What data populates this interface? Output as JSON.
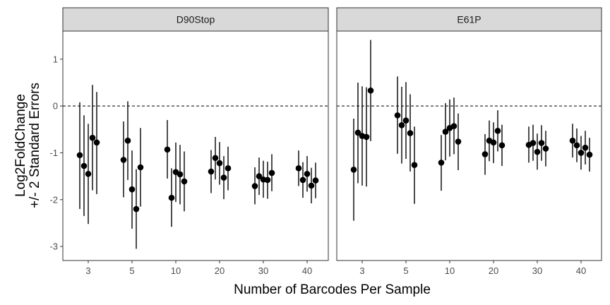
{
  "chart_data": {
    "type": "scatter",
    "subtype": "faceted point-range",
    "xlabel": "Number of Barcodes Per Sample",
    "ylabel_lines": [
      "Log2FoldChange",
      "+/- 2 Standard Errors"
    ],
    "ylim": [
      -3.3,
      1.6
    ],
    "y_ticks": [
      1,
      0,
      -1,
      -2,
      -3
    ],
    "y_tick_labels": [
      "1",
      "0",
      "-1",
      "-2",
      "-3"
    ],
    "x_categories": [
      "3",
      "5",
      "10",
      "20",
      "30",
      "40"
    ],
    "reference_line": {
      "y": 0,
      "style": "dashed"
    },
    "grid": false,
    "point_color": "#000000",
    "strip_color": "#d9d9d9",
    "panels": [
      {
        "strip": "D90Stop",
        "groups": [
          {
            "category": "3",
            "points": [
              {
                "y": -1.05,
                "lo": -2.2,
                "hi": 0.08
              },
              {
                "y": -1.28,
                "lo": -2.35,
                "hi": -0.2
              },
              {
                "y": -1.45,
                "lo": -2.52,
                "hi": -0.38
              },
              {
                "y": -0.68,
                "lo": -1.8,
                "hi": 0.45
              },
              {
                "y": -0.78,
                "lo": -1.88,
                "hi": 0.3
              }
            ]
          },
          {
            "category": "5",
            "points": [
              {
                "y": -1.15,
                "lo": -1.95,
                "hi": -0.33
              },
              {
                "y": -0.74,
                "lo": -1.58,
                "hi": 0.1
              },
              {
                "y": -1.78,
                "lo": -2.62,
                "hi": -0.95
              },
              {
                "y": -2.2,
                "lo": -3.05,
                "hi": -1.35
              },
              {
                "y": -1.31,
                "lo": -2.15,
                "hi": -0.47
              }
            ]
          },
          {
            "category": "10",
            "points": [
              {
                "y": -0.93,
                "lo": -1.55,
                "hi": -0.3
              },
              {
                "y": -1.96,
                "lo": -2.58,
                "hi": -1.33
              },
              {
                "y": -1.41,
                "lo": -2.05,
                "hi": -0.78
              },
              {
                "y": -1.46,
                "lo": -2.1,
                "hi": -0.83
              },
              {
                "y": -1.61,
                "lo": -2.25,
                "hi": -0.97
              }
            ]
          },
          {
            "category": "20",
            "points": [
              {
                "y": -1.4,
                "lo": -1.86,
                "hi": -0.94
              },
              {
                "y": -1.11,
                "lo": -1.57,
                "hi": -0.66
              },
              {
                "y": -1.22,
                "lo": -1.68,
                "hi": -0.77
              },
              {
                "y": -1.53,
                "lo": -1.99,
                "hi": -1.07
              },
              {
                "y": -1.33,
                "lo": -1.8,
                "hi": -0.87
              }
            ]
          },
          {
            "category": "30",
            "points": [
              {
                "y": -1.71,
                "lo": -2.1,
                "hi": -1.31
              },
              {
                "y": -1.5,
                "lo": -1.9,
                "hi": -1.1
              },
              {
                "y": -1.57,
                "lo": -1.96,
                "hi": -1.17
              },
              {
                "y": -1.58,
                "lo": -1.98,
                "hi": -1.19
              },
              {
                "y": -1.43,
                "lo": -1.82,
                "hi": -1.03
              }
            ]
          },
          {
            "category": "40",
            "points": [
              {
                "y": -1.33,
                "lo": -1.71,
                "hi": -0.95
              },
              {
                "y": -1.58,
                "lo": -1.96,
                "hi": -1.2
              },
              {
                "y": -1.45,
                "lo": -1.83,
                "hi": -1.07
              },
              {
                "y": -1.7,
                "lo": -2.08,
                "hi": -1.32
              },
              {
                "y": -1.59,
                "lo": -1.97,
                "hi": -1.21
              }
            ]
          }
        ]
      },
      {
        "strip": "E61P",
        "groups": [
          {
            "category": "3",
            "points": [
              {
                "y": -1.36,
                "lo": -2.45,
                "hi": -0.27
              },
              {
                "y": -0.57,
                "lo": -1.65,
                "hi": 0.5
              },
              {
                "y": -0.64,
                "lo": -1.7,
                "hi": 0.42
              },
              {
                "y": -0.66,
                "lo": -1.72,
                "hi": 0.4
              },
              {
                "y": 0.33,
                "lo": -0.75,
                "hi": 1.41
              }
            ]
          },
          {
            "category": "5",
            "points": [
              {
                "y": -0.2,
                "lo": -1.02,
                "hi": 0.63
              },
              {
                "y": -0.41,
                "lo": -1.23,
                "hi": 0.41
              },
              {
                "y": -0.31,
                "lo": -1.13,
                "hi": 0.51
              },
              {
                "y": -0.58,
                "lo": -1.4,
                "hi": 0.25
              },
              {
                "y": -1.26,
                "lo": -2.09,
                "hi": -0.44
              }
            ]
          },
          {
            "category": "10",
            "points": [
              {
                "y": -1.21,
                "lo": -1.81,
                "hi": -0.62
              },
              {
                "y": -0.55,
                "lo": -1.16,
                "hi": 0.06
              },
              {
                "y": -0.47,
                "lo": -1.08,
                "hi": 0.14
              },
              {
                "y": -0.43,
                "lo": -1.03,
                "hi": 0.18
              },
              {
                "y": -0.76,
                "lo": -1.37,
                "hi": -0.16
              }
            ]
          },
          {
            "category": "20",
            "points": [
              {
                "y": -1.03,
                "lo": -1.47,
                "hi": -0.6
              },
              {
                "y": -0.74,
                "lo": -1.18,
                "hi": -0.31
              },
              {
                "y": -0.78,
                "lo": -1.22,
                "hi": -0.35
              },
              {
                "y": -0.53,
                "lo": -0.97,
                "hi": -0.09
              },
              {
                "y": -0.84,
                "lo": -1.28,
                "hi": -0.4
              }
            ]
          },
          {
            "category": "30",
            "points": [
              {
                "y": -0.83,
                "lo": -1.21,
                "hi": -0.44
              },
              {
                "y": -0.79,
                "lo": -1.17,
                "hi": -0.4
              },
              {
                "y": -0.98,
                "lo": -1.36,
                "hi": -0.59
              },
              {
                "y": -0.79,
                "lo": -1.17,
                "hi": -0.41
              },
              {
                "y": -0.91,
                "lo": -1.29,
                "hi": -0.53
              }
            ]
          },
          {
            "category": "40",
            "points": [
              {
                "y": -0.74,
                "lo": -1.1,
                "hi": -0.38
              },
              {
                "y": -0.84,
                "lo": -1.2,
                "hi": -0.48
              },
              {
                "y": -1.0,
                "lo": -1.36,
                "hi": -0.64
              },
              {
                "y": -0.89,
                "lo": -1.25,
                "hi": -0.53
              },
              {
                "y": -1.04,
                "lo": -1.4,
                "hi": -0.68
              }
            ]
          }
        ]
      }
    ]
  }
}
